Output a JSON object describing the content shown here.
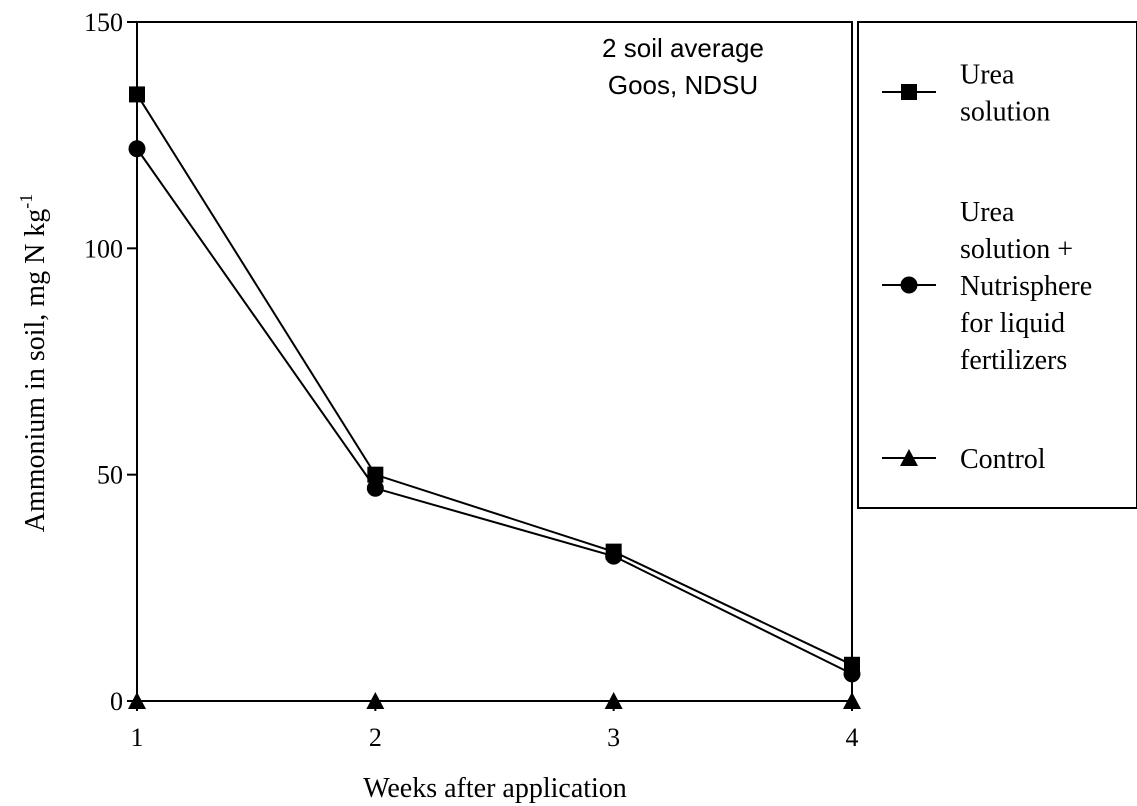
{
  "chart_data": {
    "type": "line",
    "x": [
      1,
      2,
      3,
      4
    ],
    "xlabel": "Weeks after application",
    "ylabel_main": "Ammonium in soil, mg N kg",
    "ylabel_sup": "-1",
    "xlim": [
      1,
      4
    ],
    "ylim": [
      0,
      150
    ],
    "xticks": [
      "1",
      "2",
      "3",
      "4"
    ],
    "yticks": [
      "0",
      "50",
      "100",
      "150"
    ],
    "ytick_values": [
      0,
      50,
      100,
      150
    ],
    "annotation": [
      "2 soil average",
      "Goos, NDSU"
    ],
    "grid": false,
    "legend_position": "right, outside plot",
    "series": [
      {
        "name": "Urea solution",
        "legend_lines": [
          "Urea",
          "solution"
        ],
        "marker": "square",
        "values": [
          134,
          50,
          33,
          8
        ]
      },
      {
        "name": "Urea solution + Nutrisphere for liquid fertilizers",
        "legend_lines": [
          "Urea",
          "solution +",
          "Nutrisphere",
          "for liquid",
          "fertilizers"
        ],
        "marker": "circle",
        "values": [
          122,
          47,
          32,
          6
        ]
      },
      {
        "name": "Control",
        "legend_lines": [
          "Control"
        ],
        "marker": "triangle",
        "values": [
          0,
          0,
          0,
          0
        ]
      }
    ]
  }
}
